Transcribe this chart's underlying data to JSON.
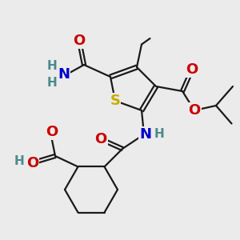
{
  "bg_color": "#ebebeb",
  "bond_color": "#1a1a1a",
  "atoms": {
    "S": {
      "color": "#ccaa00",
      "fontsize": 13
    },
    "N": {
      "color": "#0000cc",
      "fontsize": 13
    },
    "O": {
      "color": "#cc0000",
      "fontsize": 13
    },
    "H": {
      "color": "#4a8a8a",
      "fontsize": 11
    },
    "C": {
      "color": "#1a1a1a",
      "fontsize": 10
    }
  },
  "bond_width": 1.6,
  "dbo": 0.08
}
